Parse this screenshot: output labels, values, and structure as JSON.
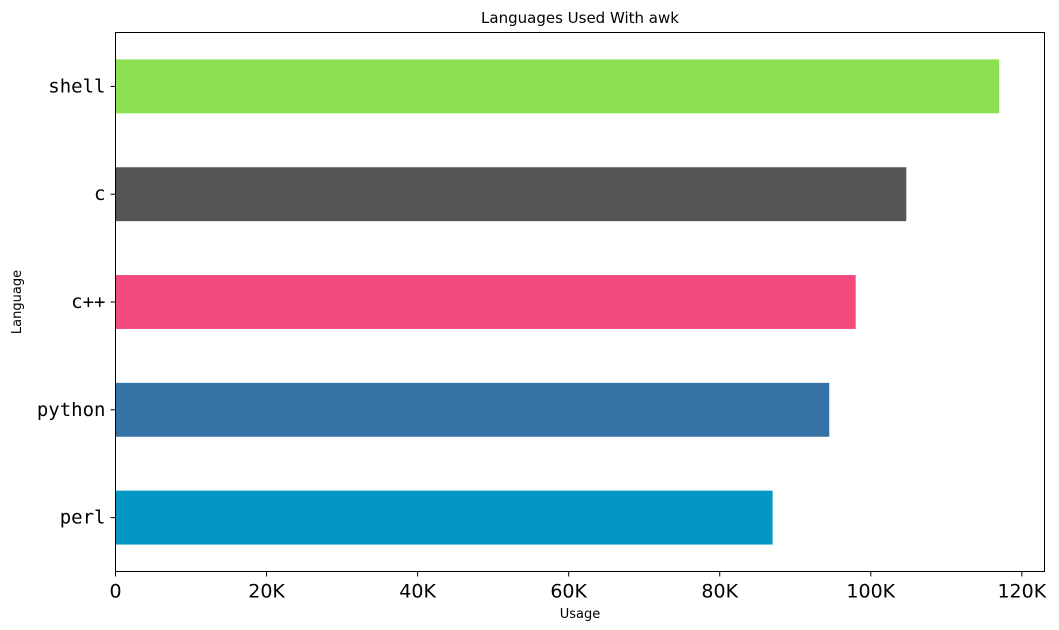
{
  "chart_data": {
    "type": "bar",
    "orientation": "horizontal",
    "title": "Languages Used With awk",
    "xlabel": "Usage",
    "ylabel": "Language",
    "categories": [
      "shell",
      "c",
      "c++",
      "python",
      "perl"
    ],
    "values": [
      117000,
      104700,
      98000,
      94500,
      87000
    ],
    "colors": [
      "#8be151",
      "#555555",
      "#f34b7d",
      "#3572a5",
      "#0298c3"
    ],
    "xlim": [
      0,
      123000
    ],
    "xticks": [
      0,
      20000,
      40000,
      60000,
      80000,
      100000,
      120000
    ],
    "xtick_labels": [
      "0",
      "20K",
      "40K",
      "60K",
      "80K",
      "100K",
      "120K"
    ],
    "grid": false,
    "legend": "none"
  }
}
